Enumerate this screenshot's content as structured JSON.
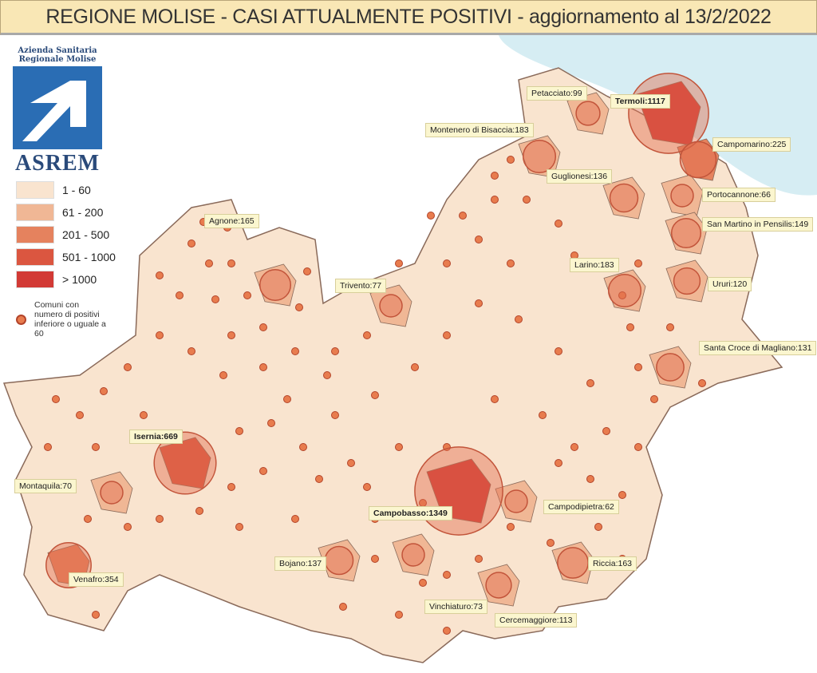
{
  "title": "REGIONE MOLISE - CASI ATTUALMENTE POSITIVI - aggiornamento al 13/2/2022",
  "logo": {
    "org_line1": "Azienda Sanitaria",
    "org_line2": "Regionale Molise",
    "name": "ASREM"
  },
  "legend": {
    "classes": [
      {
        "label": "1 - 60",
        "color": "#f9e4cf"
      },
      {
        "label": "61 - 200",
        "color": "#f0b795"
      },
      {
        "label": "201 - 500",
        "color": "#e5825e"
      },
      {
        "label": "501 - 1000",
        "color": "#db5640"
      },
      {
        "label": "> 1000",
        "color": "#d23a35"
      }
    ],
    "dot_label": "Comuni con numero di positivi inferiore o uguale a 60"
  },
  "colors": {
    "sea": "#d6edf3",
    "land": "#f9e4cf",
    "border": "#8a6a5a",
    "dot": "#e87c4e"
  },
  "comuni": [
    {
      "label": "Petacciato:99",
      "value": 99
    },
    {
      "label": "Termoli:1117",
      "value": 1117,
      "bold": true
    },
    {
      "label": "Montenero di Bisaccia:183",
      "value": 183
    },
    {
      "label": "Campomarino:225",
      "value": 225
    },
    {
      "label": "Guglionesi:136",
      "value": 136
    },
    {
      "label": "Portocannone:66",
      "value": 66
    },
    {
      "label": "San Martino in Pensilis:149",
      "value": 149
    },
    {
      "label": "Agnone:165",
      "value": 165
    },
    {
      "label": "Trivento:77",
      "value": 77
    },
    {
      "label": "Larino:183",
      "value": 183
    },
    {
      "label": "Ururi:120",
      "value": 120
    },
    {
      "label": "Santa Croce di Magliano:131",
      "value": 131
    },
    {
      "label": "Isernia:669",
      "value": 669,
      "bold": true
    },
    {
      "label": "Montaquila:70",
      "value": 70
    },
    {
      "label": "Campobasso:1349",
      "value": 1349,
      "bold": true
    },
    {
      "label": "Campodipietra:62",
      "value": 62
    },
    {
      "label": "Venafro:354",
      "value": 354
    },
    {
      "label": "Bojano:137",
      "value": 137
    },
    {
      "label": "Vinchiaturo:73",
      "value": 73
    },
    {
      "label": "Riccia:163",
      "value": 163
    },
    {
      "label": "Cercemaggiore:113",
      "value": 113
    }
  ]
}
